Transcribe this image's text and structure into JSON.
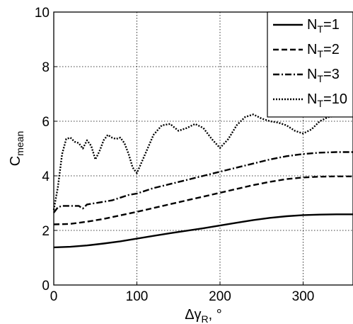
{
  "chart_data": {
    "type": "line",
    "xlabel": {
      "main": "Δγ",
      "sub": "R",
      "suffix": ", °"
    },
    "ylabel": {
      "main": "C",
      "sub": "mean"
    },
    "xlim": [
      0,
      360
    ],
    "ylim": [
      0,
      10
    ],
    "xticks": [
      0,
      100,
      200,
      300
    ],
    "yticks": [
      0,
      2,
      4,
      6,
      8,
      10
    ],
    "grid": true,
    "legend_position": "top-right",
    "series": [
      {
        "name": {
          "main": "N",
          "sub": "T",
          "suffix": "=1"
        },
        "style": "solid",
        "x": [
          0,
          20,
          40,
          60,
          80,
          100,
          120,
          140,
          160,
          180,
          200,
          220,
          240,
          260,
          280,
          300,
          320,
          340,
          360
        ],
        "y": [
          1.38,
          1.4,
          1.45,
          1.52,
          1.6,
          1.7,
          1.8,
          1.9,
          1.99,
          2.08,
          2.18,
          2.28,
          2.38,
          2.46,
          2.52,
          2.56,
          2.58,
          2.59,
          2.59
        ]
      },
      {
        "name": {
          "main": "N",
          "sub": "T",
          "suffix": "=2"
        },
        "style": "dashed",
        "x": [
          0,
          20,
          40,
          60,
          80,
          100,
          120,
          140,
          160,
          180,
          200,
          220,
          240,
          260,
          280,
          300,
          320,
          340,
          360
        ],
        "y": [
          2.22,
          2.24,
          2.32,
          2.42,
          2.55,
          2.68,
          2.82,
          2.96,
          3.1,
          3.24,
          3.38,
          3.52,
          3.66,
          3.78,
          3.88,
          3.94,
          3.97,
          3.98,
          3.98
        ]
      },
      {
        "name": {
          "main": "N",
          "sub": "T",
          "suffix": "=3"
        },
        "style": "dashdot",
        "x": [
          0,
          5,
          10,
          20,
          30,
          35,
          40,
          50,
          60,
          70,
          80,
          90,
          100,
          120,
          140,
          160,
          180,
          200,
          220,
          240,
          260,
          280,
          300,
          320,
          340,
          360
        ],
        "y": [
          2.65,
          2.85,
          2.9,
          2.9,
          2.9,
          2.8,
          2.95,
          3.0,
          3.05,
          3.1,
          3.2,
          3.3,
          3.35,
          3.55,
          3.7,
          3.85,
          4.0,
          4.15,
          4.3,
          4.45,
          4.6,
          4.72,
          4.8,
          4.85,
          4.87,
          4.87
        ]
      },
      {
        "name": {
          "main": "N",
          "sub": "T",
          "suffix": "=10"
        },
        "style": "dotted",
        "x": [
          0,
          5,
          10,
          15,
          20,
          25,
          30,
          35,
          40,
          45,
          50,
          55,
          60,
          65,
          70,
          75,
          80,
          85,
          90,
          95,
          100,
          110,
          120,
          130,
          140,
          150,
          160,
          170,
          180,
          190,
          200,
          210,
          220,
          230,
          240,
          250,
          260,
          270,
          280,
          290,
          300,
          310,
          320,
          330,
          340,
          350,
          360
        ],
        "y": [
          2.75,
          3.6,
          4.8,
          5.35,
          5.4,
          5.25,
          5.2,
          5.0,
          5.3,
          5.1,
          4.6,
          4.9,
          5.3,
          5.5,
          5.4,
          5.35,
          5.4,
          5.2,
          4.8,
          4.3,
          4.1,
          4.8,
          5.5,
          5.85,
          5.9,
          5.65,
          5.75,
          5.9,
          5.75,
          5.35,
          5.02,
          5.35,
          5.85,
          6.15,
          6.25,
          6.1,
          6.0,
          5.95,
          5.85,
          5.65,
          5.55,
          5.7,
          6.0,
          6.15,
          6.2,
          6.2,
          6.2
        ]
      }
    ]
  }
}
